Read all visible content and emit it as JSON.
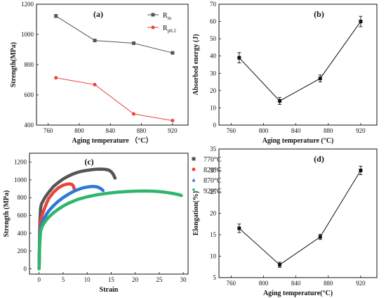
{
  "chart_data": [
    {
      "id": "a",
      "panel_label": "(a)",
      "type": "line",
      "xlabel": "Aging temperature （°C）",
      "ylabel": "Strength(MPa)",
      "xlim": [
        745,
        940
      ],
      "ylim": [
        400,
        1200
      ],
      "xticks": [
        760,
        800,
        840,
        880,
        920
      ],
      "yticks": [
        400,
        600,
        800,
        1000,
        1200
      ],
      "series": [
        {
          "name": "R",
          "name_sub": "m",
          "color": "#555555",
          "marker": "square",
          "x": [
            770,
            820,
            870,
            920
          ],
          "y": [
            1122,
            960,
            942,
            878
          ],
          "err": [
            10,
            6,
            5,
            5
          ]
        },
        {
          "name": "R",
          "name_sub": "p0.2",
          "color": "#e8453c",
          "marker": "circle",
          "x": [
            770,
            820,
            870,
            920
          ],
          "y": [
            713,
            668,
            474,
            430
          ],
          "err": [
            0,
            0,
            0,
            0
          ]
        }
      ]
    },
    {
      "id": "b",
      "panel_label": "(b)",
      "type": "line",
      "xlabel": "Aging temperature (°C)",
      "ylabel": "Absorbed energy (J)",
      "xlim": [
        745,
        940
      ],
      "ylim": [
        0,
        70
      ],
      "xticks": [
        760,
        800,
        840,
        880,
        920
      ],
      "yticks": [
        0,
        10,
        20,
        30,
        40,
        50,
        60,
        70
      ],
      "series": [
        {
          "name": "",
          "color": "#111111",
          "marker": "square",
          "x": [
            770,
            820,
            870,
            920
          ],
          "y": [
            39,
            14,
            27,
            60
          ],
          "err": [
            3,
            2,
            2,
            3
          ]
        }
      ]
    },
    {
      "id": "c",
      "panel_label": "(c)",
      "type": "line",
      "xlabel": "Strain",
      "ylabel": "Strength (MPa)",
      "xlim": [
        -2,
        31
      ],
      "ylim": [
        -60,
        1300
      ],
      "xticks": [
        0,
        5,
        10,
        15,
        20,
        25,
        30
      ],
      "yticks": [
        0,
        200,
        400,
        600,
        800,
        1000,
        1200
      ],
      "series": [
        {
          "name": "770°C",
          "color": "#555555",
          "marker": "square",
          "x": [
            0,
            0.15,
            0.3,
            0.5,
            0.8,
            1.2,
            2,
            3,
            4,
            5,
            6,
            7,
            8,
            9,
            10,
            11,
            12,
            13,
            13.8,
            14.5,
            15,
            15.4,
            15.8
          ],
          "y": [
            0,
            500,
            680,
            730,
            760,
            800,
            860,
            925,
            970,
            1010,
            1040,
            1065,
            1085,
            1098,
            1108,
            1115,
            1120,
            1121,
            1118,
            1110,
            1092,
            1065,
            1020
          ]
        },
        {
          "name": "820°C",
          "color": "#e8453c",
          "marker": "circle",
          "x": [
            0,
            0.1,
            0.2,
            0.4,
            0.6,
            1,
            1.5,
            2,
            3,
            4,
            5,
            5.8,
            6.4,
            6.8,
            7.1,
            7.3
          ],
          "y": [
            0,
            300,
            500,
            560,
            600,
            660,
            730,
            790,
            860,
            910,
            940,
            952,
            955,
            950,
            935,
            900
          ]
        },
        {
          "name": "870°C",
          "color": "#2f78d6",
          "marker": "triangle",
          "x": [
            0,
            0.1,
            0.2,
            0.4,
            0.7,
            1,
            1.5,
            2,
            3,
            4,
            5,
            6,
            7,
            8,
            9,
            10,
            11,
            11.8,
            12.4,
            12.9,
            13.3
          ],
          "y": [
            0,
            250,
            420,
            480,
            520,
            560,
            610,
            650,
            710,
            760,
            800,
            835,
            865,
            890,
            908,
            920,
            926,
            924,
            915,
            900,
            880
          ]
        },
        {
          "name": "920°C",
          "color": "#2fb56c",
          "marker": "triangle-down",
          "x": [
            0,
            0.1,
            0.3,
            0.6,
            1,
            1.5,
            2,
            3,
            4,
            5,
            6,
            8,
            10,
            12,
            14,
            16,
            18,
            20,
            22,
            24,
            25,
            26,
            27,
            28,
            29,
            29.6
          ],
          "y": [
            0,
            250,
            420,
            470,
            510,
            550,
            580,
            630,
            670,
            705,
            735,
            780,
            810,
            832,
            848,
            860,
            868,
            873,
            875,
            872,
            868,
            862,
            855,
            845,
            835,
            825
          ]
        }
      ]
    },
    {
      "id": "d",
      "panel_label": "(d)",
      "type": "line",
      "xlabel": "Aging temperature(°C)",
      "ylabel": "Elongation(%)",
      "xlim": [
        745,
        940
      ],
      "ylim": [
        5,
        35
      ],
      "xticks": [
        760,
        800,
        840,
        880,
        920
      ],
      "yticks": [
        5,
        10,
        15,
        20,
        25,
        30,
        35
      ],
      "series": [
        {
          "name": "",
          "color": "#111111",
          "marker": "square",
          "x": [
            770,
            820,
            870,
            920
          ],
          "y": [
            16.5,
            8,
            14.5,
            30
          ],
          "err": [
            1,
            0.6,
            0.6,
            1
          ]
        }
      ]
    }
  ]
}
